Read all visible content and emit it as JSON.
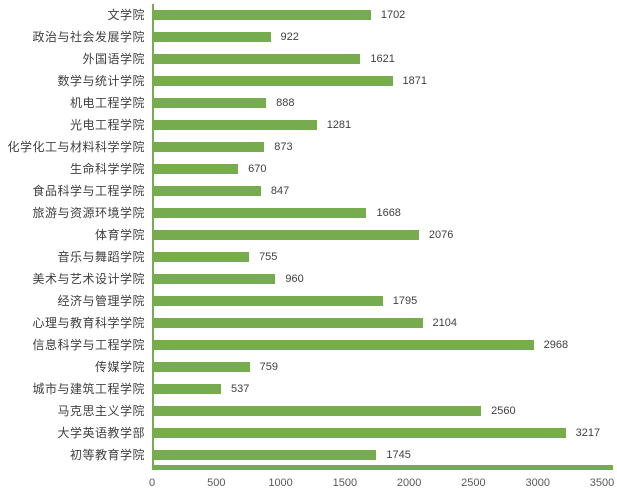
{
  "chart_data": {
    "type": "bar",
    "orientation": "horizontal",
    "title": "",
    "xlabel": "",
    "ylabel": "",
    "categories": [
      "文学院",
      "政治与社会发展学院",
      "外国语学院",
      "数学与统计学院",
      "机电工程学院",
      "光电工程学院",
      "化学化工与材料科学学院",
      "生命科学学院",
      "食品科学与工程学院",
      "旅游与资源环境学院",
      "体育学院",
      "音乐与舞蹈学院",
      "美术与艺术设计学院",
      "经济与管理学院",
      "心理与教育科学学院",
      "信息科学与工程学院",
      "传媒学院",
      "城市与建筑工程学院",
      "马克思主义学院",
      "大学英语教学部",
      "初等教育学院"
    ],
    "values": [
      1702,
      922,
      1621,
      1871,
      888,
      1281,
      873,
      670,
      847,
      1668,
      2076,
      755,
      960,
      1795,
      2104,
      2968,
      759,
      537,
      2560,
      3217,
      1745
    ],
    "data_labels": [
      "1702",
      "922",
      "1621",
      "1871",
      "888",
      "1281",
      "873",
      "670",
      "847",
      "1668",
      "2076",
      "755",
      "960",
      "1795",
      "2104",
      "2968",
      "759",
      "537",
      "2560",
      "3217",
      "1745"
    ],
    "xlim": [
      0,
      3500
    ],
    "xticks": [
      "0",
      "500",
      "1000",
      "1500",
      "2000",
      "2500",
      "3000",
      "3500"
    ],
    "xtick_values": [
      0,
      500,
      1000,
      1500,
      2000,
      2500,
      3000,
      3500
    ],
    "grid": false,
    "legend_position": "none",
    "colors": {
      "bar": "#76AC4E",
      "axis_line": "#76AC4E",
      "category_label": "#404040",
      "value_label": "#404040",
      "tick_label": "#595959",
      "background": "#ffffff"
    }
  }
}
